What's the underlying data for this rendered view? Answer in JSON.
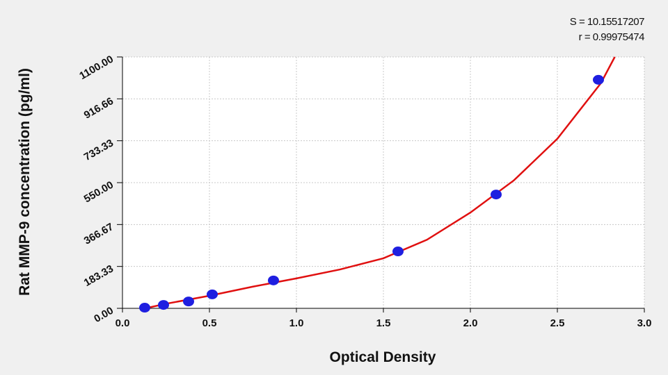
{
  "chart_data": {
    "type": "scatter",
    "annotations": [
      "S = 10.15517207",
      "r = 0.99975474"
    ],
    "x_label": "Optical Density",
    "y_label": "Rat MMP-9  concentration (pg/ml)",
    "xlim": [
      0,
      3
    ],
    "ylim": [
      0,
      1100
    ],
    "xticks": [
      {
        "value": 0,
        "label": "0.0"
      },
      0.5,
      {
        "value": 1,
        "label": "1.0"
      },
      1.5,
      {
        "value": 2,
        "label": "2.0"
      },
      2.5,
      {
        "value": 3,
        "label": "3.0"
      }
    ],
    "yticks": [
      {
        "value": 0,
        "label": "0.00"
      },
      183.33,
      366.67,
      {
        "value": 550,
        "label": "550.00"
      },
      733.33,
      916.66,
      {
        "value": 1100,
        "label": "1100.00"
      }
    ],
    "grid": true,
    "series": [
      {
        "type": "scatter",
        "color": "#1f1fe0",
        "x": [
          0.128,
          0.236,
          0.38,
          0.516,
          0.868,
          1.584,
          2.148,
          2.736
        ],
        "values": [
          3,
          15,
          30,
          61,
          122,
          249,
          498,
          1000
        ]
      },
      {
        "type": "line",
        "color": "#e01010",
        "x": [
          0.13,
          0.25,
          0.5,
          0.75,
          1.0,
          1.25,
          1.5,
          1.75,
          2.0,
          2.25,
          2.5,
          2.75,
          2.83
        ],
        "values": [
          0,
          20,
          55,
          95,
          131,
          170,
          219,
          300,
          419,
          560,
          742,
          985,
          1100
        ]
      }
    ]
  }
}
